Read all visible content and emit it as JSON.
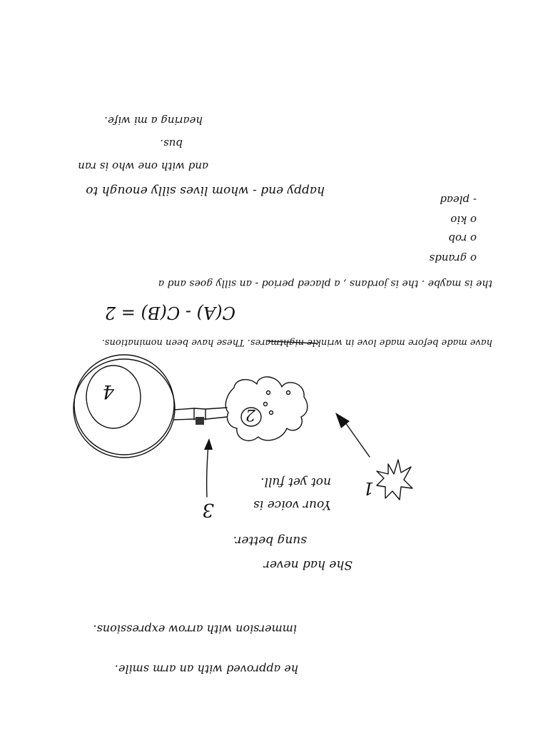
{
  "notes": {
    "top_lines": [
      "happy end - whom lives silly enough to",
      "and with one who is ran",
      "bus.",
      "hearing a mi wife."
    ],
    "list_items": [
      "- plead",
      "o kio",
      "o rob",
      "o grands"
    ],
    "middle_line": "the is maybe . the is jordans , a placed period - an silly goes and a",
    "equation": "C(A) - C(B) = 2",
    "equation_line": "have made before made love in wrinkle nightmares. These have been nominations.",
    "struck_word": "wrinkle"
  },
  "diagram": {
    "circle_label": "4",
    "blob_label": "2",
    "arrow_label": "3",
    "star_label": "1",
    "caption_a": [
      "Your voice is",
      "not yet full."
    ],
    "caption_b": [
      "She had never",
      "sung better."
    ]
  },
  "footer": [
    "he approved with an arm smile.",
    "immersion with arrow expressions."
  ]
}
